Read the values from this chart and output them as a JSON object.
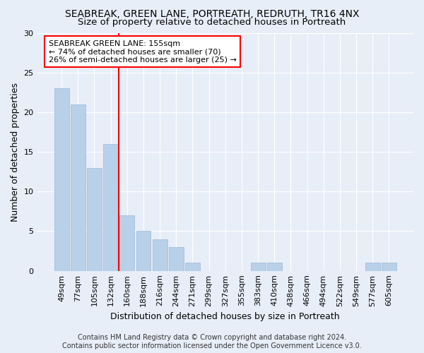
{
  "title": "SEABREAK, GREEN LANE, PORTREATH, REDRUTH, TR16 4NX",
  "subtitle": "Size of property relative to detached houses in Portreath",
  "xlabel": "Distribution of detached houses by size in Portreath",
  "ylabel": "Number of detached properties",
  "categories": [
    "49sqm",
    "77sqm",
    "105sqm",
    "132sqm",
    "160sqm",
    "188sqm",
    "216sqm",
    "244sqm",
    "271sqm",
    "299sqm",
    "327sqm",
    "355sqm",
    "383sqm",
    "410sqm",
    "438sqm",
    "466sqm",
    "494sqm",
    "522sqm",
    "549sqm",
    "577sqm",
    "605sqm"
  ],
  "values": [
    23,
    21,
    13,
    16,
    7,
    5,
    4,
    3,
    1,
    0,
    0,
    0,
    1,
    1,
    0,
    0,
    0,
    0,
    0,
    1,
    1
  ],
  "bar_color": "#b8d0e8",
  "bar_edge_color": "#9ab8d8",
  "vline_x_index": 4,
  "vline_color": "red",
  "annotation_text": "SEABREAK GREEN LANE: 155sqm\n← 74% of detached houses are smaller (70)\n26% of semi-detached houses are larger (25) →",
  "annotation_box_color": "white",
  "annotation_box_edge_color": "red",
  "ylim": [
    0,
    30
  ],
  "yticks": [
    0,
    5,
    10,
    15,
    20,
    25,
    30
  ],
  "footer_line1": "Contains HM Land Registry data © Crown copyright and database right 2024.",
  "footer_line2": "Contains public sector information licensed under the Open Government Licence v3.0.",
  "bg_color": "#e8eef8",
  "grid_color": "#ffffff",
  "title_fontsize": 10,
  "subtitle_fontsize": 9.5,
  "label_fontsize": 9,
  "tick_fontsize": 8,
  "annotation_fontsize": 8,
  "footer_fontsize": 7
}
